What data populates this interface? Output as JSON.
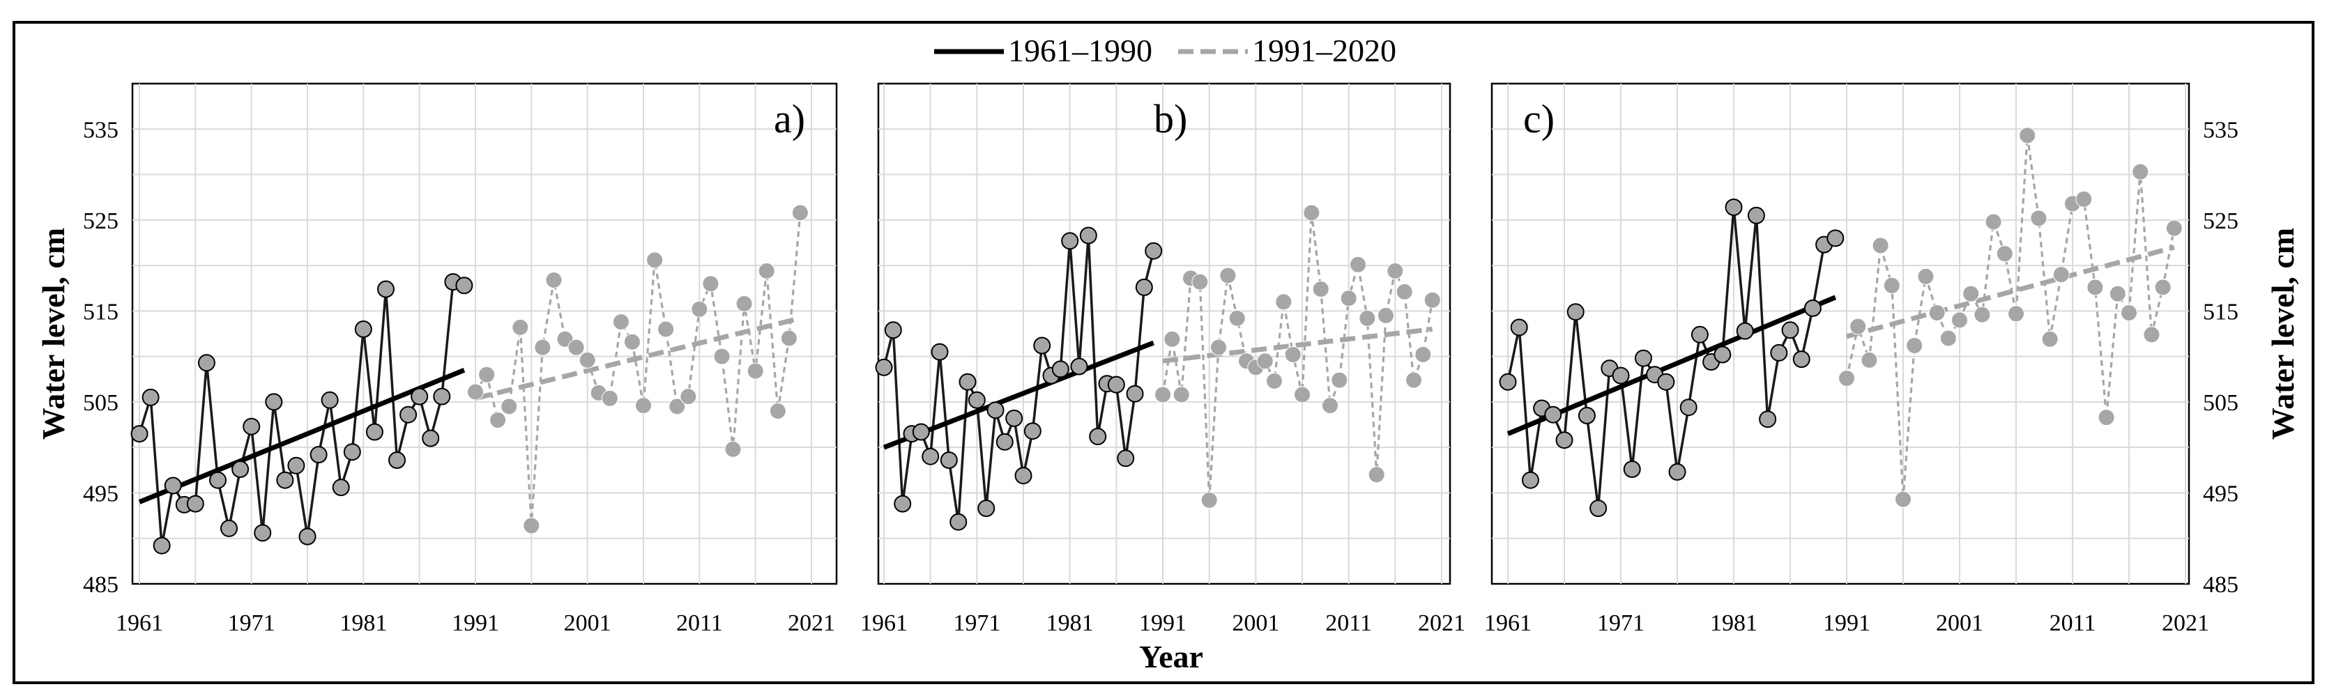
{
  "chart_data": {
    "type": "line",
    "title": "",
    "xlabel": "Year",
    "ylabel": "Water level, cm",
    "ylim": [
      485,
      540
    ],
    "xlim": [
      1961,
      2021
    ],
    "xticks": [
      "1961",
      "1971",
      "1981",
      "1991",
      "2001",
      "2011",
      "2021"
    ],
    "yticks": [
      "485",
      "495",
      "505",
      "515",
      "525",
      "535"
    ],
    "grid": true,
    "legend_position": "top-center",
    "legend": [
      {
        "label": "1961–1990",
        "style": "solid",
        "color": "#000000"
      },
      {
        "label": "1991–2020",
        "style": "dashed",
        "color": "#a6a6a6"
      }
    ],
    "colors": {
      "period1_line": "#1a1a1a",
      "period1_marker": "#a6a6a6",
      "period2_line": "#a6a6a6",
      "period2_marker": "#a6a6a6",
      "trend1": "#000000",
      "trend2": "#a6a6a6"
    },
    "panels": [
      {
        "label": "a)",
        "series": [
          {
            "name": "1961–1990",
            "x": [
              1961,
              1962,
              1963,
              1964,
              1965,
              1966,
              1967,
              1968,
              1969,
              1970,
              1971,
              1972,
              1973,
              1974,
              1975,
              1976,
              1977,
              1978,
              1979,
              1980,
              1981,
              1982,
              1983,
              1984,
              1985,
              1986,
              1987,
              1988,
              1989,
              1990
            ],
            "values": [
              501.5,
              505.5,
              489.2,
              495.8,
              493.7,
              493.8,
              509.3,
              496.4,
              491.1,
              497.6,
              502.3,
              490.6,
              505.0,
              496.4,
              498.0,
              490.2,
              499.2,
              505.2,
              495.6,
              499.5,
              513.0,
              501.7,
              517.4,
              498.6,
              503.6,
              505.6,
              501.0,
              505.6,
              518.2,
              517.8
            ],
            "trend": [
              494.0,
              508.5
            ]
          },
          {
            "name": "1991–2020",
            "x": [
              1991,
              1992,
              1993,
              1994,
              1995,
              1996,
              1997,
              1998,
              1999,
              2000,
              2001,
              2002,
              2003,
              2004,
              2005,
              2006,
              2007,
              2008,
              2009,
              2010,
              2011,
              2012,
              2013,
              2014,
              2015,
              2016,
              2017,
              2018,
              2019,
              2020
            ],
            "values": [
              506.1,
              508.0,
              503.0,
              504.5,
              513.2,
              491.4,
              511.0,
              518.4,
              511.9,
              511.0,
              509.6,
              506.0,
              505.4,
              513.8,
              511.6,
              504.6,
              520.6,
              513.0,
              504.5,
              505.6,
              515.2,
              518.0,
              510.0,
              499.8,
              515.8,
              508.4,
              519.4,
              504.0,
              512.0,
              525.8
            ],
            "trend": [
              505.4,
              514.2
            ]
          }
        ]
      },
      {
        "label": "b)",
        "series": [
          {
            "name": "1961–1990",
            "x": [
              1961,
              1962,
              1963,
              1964,
              1965,
              1966,
              1967,
              1968,
              1969,
              1970,
              1971,
              1972,
              1973,
              1974,
              1975,
              1976,
              1977,
              1978,
              1979,
              1980,
              1981,
              1982,
              1983,
              1984,
              1985,
              1986,
              1987,
              1988,
              1989,
              1990
            ],
            "values": [
              508.8,
              512.9,
              493.8,
              501.5,
              501.7,
              499.0,
              510.5,
              498.6,
              491.8,
              507.2,
              505.2,
              493.3,
              504.1,
              500.6,
              503.2,
              496.9,
              501.8,
              511.2,
              507.9,
              508.6,
              522.7,
              508.9,
              523.3,
              501.2,
              507.0,
              506.9,
              498.8,
              505.9,
              517.6,
              521.6
            ],
            "trend": [
              500.0,
              511.5
            ]
          },
          {
            "name": "1991–2020",
            "x": [
              1991,
              1992,
              1993,
              1994,
              1995,
              1996,
              1997,
              1998,
              1999,
              2000,
              2001,
              2002,
              2003,
              2004,
              2005,
              2006,
              2007,
              2008,
              2009,
              2010,
              2011,
              2012,
              2013,
              2014,
              2015,
              2016,
              2017,
              2018,
              2019,
              2020
            ],
            "values": [
              505.8,
              511.9,
              505.8,
              518.6,
              518.2,
              494.2,
              511.0,
              518.9,
              514.2,
              509.5,
              508.8,
              509.5,
              507.3,
              516.0,
              510.2,
              505.8,
              525.8,
              517.4,
              504.6,
              507.4,
              516.4,
              520.1,
              514.2,
              497.0,
              514.5,
              519.4,
              517.1,
              507.4,
              510.2,
              516.2
            ],
            "trend": [
              509.5,
              513.0
            ]
          }
        ]
      },
      {
        "label": "c)",
        "series": [
          {
            "name": "1961–1990",
            "x": [
              1961,
              1962,
              1963,
              1964,
              1965,
              1966,
              1967,
              1968,
              1969,
              1970,
              1971,
              1972,
              1973,
              1974,
              1975,
              1976,
              1977,
              1978,
              1979,
              1980,
              1981,
              1982,
              1983,
              1984,
              1985,
              1986,
              1987,
              1988,
              1989,
              1990
            ],
            "values": [
              507.2,
              513.2,
              496.4,
              504.3,
              503.6,
              500.8,
              514.9,
              503.5,
              493.3,
              508.7,
              507.9,
              497.6,
              509.8,
              508.0,
              507.2,
              497.3,
              504.4,
              512.4,
              509.4,
              510.2,
              526.4,
              512.8,
              525.5,
              503.1,
              510.4,
              512.9,
              509.7,
              515.3,
              522.3,
              523.0
            ],
            "trend": [
              501.5,
              516.5
            ]
          },
          {
            "name": "1991–2020",
            "x": [
              1991,
              1992,
              1993,
              1994,
              1995,
              1996,
              1997,
              1998,
              1999,
              2000,
              2001,
              2002,
              2003,
              2004,
              2005,
              2006,
              2007,
              2008,
              2009,
              2010,
              2011,
              2012,
              2013,
              2014,
              2015,
              2016,
              2017,
              2018,
              2019,
              2020
            ],
            "values": [
              507.6,
              513.3,
              509.6,
              522.2,
              517.8,
              494.3,
              511.2,
              518.8,
              514.8,
              512.0,
              514.0,
              516.9,
              514.6,
              524.8,
              521.3,
              514.7,
              534.3,
              525.2,
              511.9,
              519.0,
              526.8,
              527.3,
              517.6,
              503.3,
              516.9,
              514.8,
              530.3,
              512.4,
              517.6,
              524.1
            ],
            "trend": [
              512.2,
              522.0
            ]
          }
        ]
      }
    ]
  }
}
